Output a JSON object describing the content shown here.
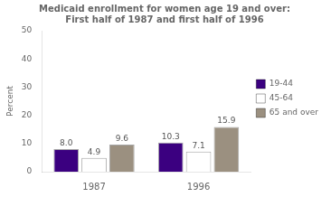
{
  "chart_data": {
    "type": "bar",
    "title": "Medicaid enrollment for women age 19 and over:\nFirst half of 1987 and first half of 1996",
    "y_label": "Percent",
    "categories": [
      "1987",
      "1996"
    ],
    "series": [
      {
        "name": "19-44",
        "color": "#3b0080",
        "values": [
          8.0,
          10.3
        ],
        "value_labels": [
          "8.0",
          "10.3"
        ]
      },
      {
        "name": "45-64",
        "color": "#ffffff",
        "values": [
          4.9,
          7.1
        ],
        "value_labels": [
          "4.9",
          "7.1"
        ]
      },
      {
        "name": "65 and over",
        "color": "#9b9080",
        "values": [
          9.6,
          15.9
        ],
        "value_labels": [
          "9.6",
          "15.9"
        ]
      }
    ],
    "ylim": [
      0,
      50
    ],
    "yticks": [
      0,
      10,
      20,
      30,
      40,
      50
    ],
    "grid": false,
    "legend": "right",
    "data_labels": true
  }
}
